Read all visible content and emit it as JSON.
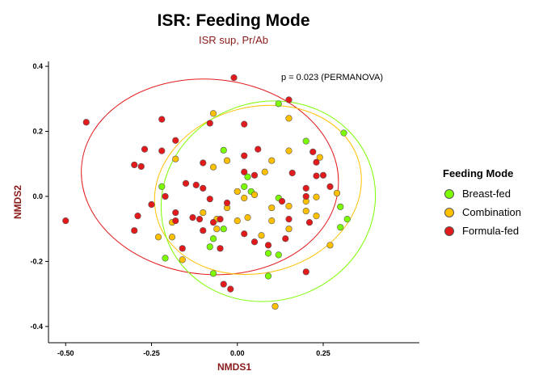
{
  "chart_data": {
    "type": "scatter",
    "title": "ISR: Feeding Mode",
    "subtitle": "ISR sup, Pr/Ab",
    "xlabel": "NMDS1",
    "ylabel": "NMDS2",
    "xlim": [
      -0.55,
      0.53
    ],
    "ylim": [
      -0.45,
      0.415
    ],
    "x_ticks": [
      -0.5,
      -0.25,
      0.0,
      0.25
    ],
    "x_tick_labels": [
      "-0.50",
      "-0.25",
      "0.00",
      "0.25"
    ],
    "y_ticks": [
      -0.4,
      -0.2,
      0.0,
      0.2,
      0.4
    ],
    "y_tick_labels": [
      "-0.4",
      "-0.2",
      "0.0",
      "0.2",
      "0.4"
    ],
    "annotation": "p =  0.023 (PERMANOVA)",
    "grid": false,
    "legend": {
      "title": "Feeding Mode",
      "placement": "right",
      "entries": [
        "Breast-fed",
        "Combination",
        "Formula-fed"
      ]
    },
    "colors": {
      "Breast-fed": "#7cfc00",
      "Combination": "#ffc000",
      "Formula-fed": "#e31a1c"
    },
    "series": [
      {
        "name": "Breast-fed",
        "points": [
          [
            0.12,
            0.285
          ],
          [
            0.31,
            0.195
          ],
          [
            0.2,
            0.17
          ],
          [
            -0.04,
            0.142
          ],
          [
            0.03,
            0.06
          ],
          [
            -0.22,
            0.03
          ],
          [
            0.02,
            0.03
          ],
          [
            -0.07,
            -0.13
          ],
          [
            -0.04,
            -0.1
          ],
          [
            0.3,
            -0.032
          ],
          [
            0.32,
            -0.07
          ],
          [
            0.3,
            -0.095
          ],
          [
            0.09,
            -0.175
          ],
          [
            0.12,
            -0.18
          ],
          [
            -0.21,
            -0.19
          ],
          [
            -0.08,
            -0.155
          ],
          [
            -0.07,
            -0.237
          ],
          [
            0.09,
            -0.245
          ],
          [
            0.04,
            0.015
          ],
          [
            0.12,
            -0.005
          ]
        ]
      },
      {
        "name": "Combination",
        "points": [
          [
            -0.07,
            0.255
          ],
          [
            0.15,
            0.24
          ],
          [
            0.24,
            0.12
          ],
          [
            0.15,
            0.14
          ],
          [
            0.1,
            0.11
          ],
          [
            -0.18,
            0.115
          ],
          [
            -0.03,
            0.11
          ],
          [
            -0.07,
            0.09
          ],
          [
            0.08,
            0.075
          ],
          [
            0.29,
            0.01
          ],
          [
            0.0,
            0.015
          ],
          [
            0.05,
            0.005
          ],
          [
            0.02,
            -0.005
          ],
          [
            -0.03,
            -0.035
          ],
          [
            0.1,
            -0.035
          ],
          [
            0.2,
            -0.015
          ],
          [
            -0.1,
            -0.05
          ],
          [
            0.03,
            -0.065
          ],
          [
            0.0,
            -0.075
          ],
          [
            -0.06,
            -0.07
          ],
          [
            0.1,
            -0.075
          ],
          [
            0.15,
            -0.1
          ],
          [
            -0.19,
            -0.08
          ],
          [
            -0.23,
            -0.125
          ],
          [
            0.23,
            -0.06
          ],
          [
            -0.06,
            -0.1
          ],
          [
            0.07,
            -0.12
          ],
          [
            -0.16,
            -0.195
          ],
          [
            -0.19,
            -0.125
          ],
          [
            0.27,
            -0.15
          ],
          [
            0.11,
            -0.338
          ],
          [
            0.15,
            -0.03
          ],
          [
            0.23,
            -0.002
          ],
          [
            0.2,
            -0.045
          ]
        ]
      },
      {
        "name": "Formula-fed",
        "points": [
          [
            -0.01,
            0.365
          ],
          [
            0.15,
            0.297
          ],
          [
            -0.44,
            0.228
          ],
          [
            -0.22,
            0.237
          ],
          [
            -0.08,
            0.225
          ],
          [
            0.02,
            0.222
          ],
          [
            -0.18,
            0.172
          ],
          [
            -0.27,
            0.145
          ],
          [
            -0.22,
            0.14
          ],
          [
            0.06,
            0.145
          ],
          [
            0.02,
            0.125
          ],
          [
            0.22,
            0.137
          ],
          [
            -0.3,
            0.097
          ],
          [
            -0.28,
            0.092
          ],
          [
            -0.1,
            0.103
          ],
          [
            0.23,
            0.105
          ],
          [
            0.02,
            0.075
          ],
          [
            0.05,
            0.065
          ],
          [
            0.16,
            0.072
          ],
          [
            0.23,
            0.063
          ],
          [
            -0.15,
            0.04
          ],
          [
            -0.12,
            0.035
          ],
          [
            -0.1,
            0.025
          ],
          [
            0.27,
            0.03
          ],
          [
            -0.21,
            0.0
          ],
          [
            -0.29,
            -0.06
          ],
          [
            -0.5,
            -0.075
          ],
          [
            -0.08,
            -0.008
          ],
          [
            -0.03,
            -0.02
          ],
          [
            0.13,
            -0.015
          ],
          [
            -0.18,
            -0.05
          ],
          [
            -0.13,
            -0.065
          ],
          [
            -0.11,
            -0.07
          ],
          [
            -0.05,
            -0.07
          ],
          [
            0.15,
            -0.07
          ],
          [
            -0.18,
            -0.075
          ],
          [
            -0.07,
            -0.08
          ],
          [
            0.21,
            -0.08
          ],
          [
            -0.1,
            -0.105
          ],
          [
            0.02,
            -0.115
          ],
          [
            -0.16,
            -0.16
          ],
          [
            -0.05,
            -0.16
          ],
          [
            0.05,
            -0.14
          ],
          [
            0.14,
            -0.13
          ],
          [
            0.2,
            -0.232
          ],
          [
            -0.04,
            -0.27
          ],
          [
            -0.02,
            -0.285
          ],
          [
            -0.3,
            -0.105
          ],
          [
            0.25,
            0.065
          ],
          [
            0.2,
            0.0
          ],
          [
            0.2,
            0.025
          ],
          [
            0.09,
            -0.15
          ],
          [
            -0.25,
            -0.025
          ]
        ]
      }
    ],
    "ellipses": [
      {
        "series": "Formula-fed",
        "center": [
          -0.08,
          0.06
        ],
        "semi_axes": [
          0.375,
          0.3
        ],
        "angle_deg": -5
      },
      {
        "series": "Combination",
        "center": [
          0.06,
          0.02
        ],
        "semi_axes": [
          0.305,
          0.255
        ],
        "angle_deg": 15
      },
      {
        "series": "Breast-fed",
        "center": [
          0.09,
          -0.015
        ],
        "semi_axes": [
          0.315,
          0.305
        ],
        "angle_deg": 20
      }
    ]
  }
}
